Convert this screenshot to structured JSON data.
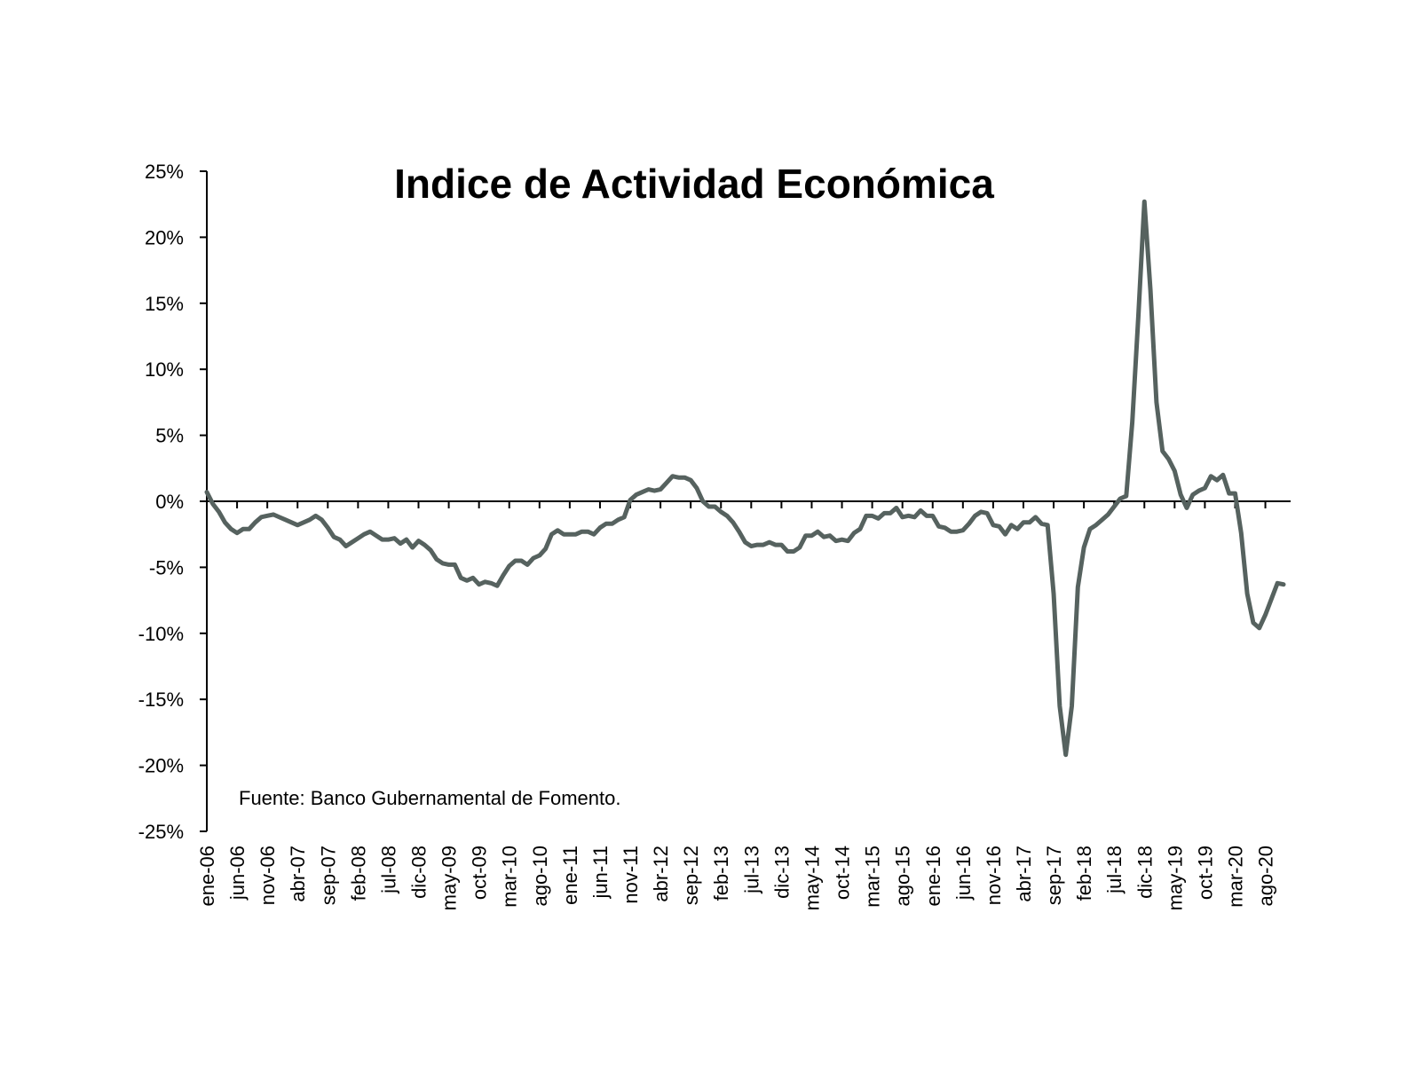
{
  "chart_data": {
    "type": "line",
    "title": "Indice de Actividad Económica",
    "note": "Fuente: Banco Gubernamental de Fomento.",
    "xlabel": "",
    "ylabel": "",
    "ylim": [
      -25,
      25
    ],
    "y_ticks": [
      25,
      20,
      15,
      10,
      5,
      0,
      -5,
      -10,
      -15,
      -20,
      -25
    ],
    "y_tick_labels": [
      "25%",
      "20%",
      "15%",
      "10%",
      "5%",
      "0%",
      "-5%",
      "-10%",
      "-15%",
      "-20%",
      "-25%"
    ],
    "x_tick_labels": [
      "ene-06",
      "jun-06",
      "nov-06",
      "abr-07",
      "sep-07",
      "feb-08",
      "jul-08",
      "dic-08",
      "may-09",
      "oct-09",
      "mar-10",
      "ago-10",
      "ene-11",
      "jun-11",
      "nov-11",
      "abr-12",
      "sep-12",
      "feb-13",
      "jul-13",
      "dic-13",
      "may-14",
      "oct-14",
      "mar-15",
      "ago-15",
      "ene-16",
      "jun-16",
      "nov-16",
      "abr-17",
      "sep-17",
      "feb-18",
      "jul-18",
      "dic-18",
      "may-19",
      "oct-19",
      "mar-20",
      "ago-20"
    ],
    "x_tick_interval_months": 5,
    "x_start": "ene-06",
    "grid": false,
    "line_color": "#56625f",
    "series": [
      {
        "values": [
          0.7,
          -0.2,
          -0.8,
          -1.6,
          -2.1,
          -2.4,
          -2.1,
          -2.1,
          -1.6,
          -1.2,
          -1.1,
          -1.0,
          -1.2,
          -1.4,
          -1.6,
          -1.8,
          -1.6,
          -1.4,
          -1.1,
          -1.4,
          -2.0,
          -2.7,
          -2.9,
          -3.4,
          -3.1,
          -2.8,
          -2.5,
          -2.3,
          -2.6,
          -2.9,
          -2.9,
          -2.8,
          -3.2,
          -2.9,
          -3.5,
          -3.0,
          -3.3,
          -3.7,
          -4.4,
          -4.7,
          -4.8,
          -4.8,
          -5.8,
          -6.0,
          -5.8,
          -6.3,
          -6.1,
          -6.2,
          -6.4,
          -5.6,
          -4.9,
          -4.5,
          -4.5,
          -4.8,
          -4.3,
          -4.1,
          -3.6,
          -2.5,
          -2.2,
          -2.5,
          -2.5,
          -2.5,
          -2.3,
          -2.3,
          -2.5,
          -2.0,
          -1.7,
          -1.7,
          -1.4,
          -1.2,
          0.1,
          0.5,
          0.7,
          0.9,
          0.8,
          0.9,
          1.4,
          1.9,
          1.8,
          1.8,
          1.6,
          1.0,
          0.0,
          -0.4,
          -0.4,
          -0.8,
          -1.1,
          -1.6,
          -2.3,
          -3.1,
          -3.4,
          -3.3,
          -3.3,
          -3.1,
          -3.3,
          -3.3,
          -3.8,
          -3.8,
          -3.5,
          -2.6,
          -2.6,
          -2.3,
          -2.7,
          -2.6,
          -3.0,
          -2.9,
          -3.0,
          -2.4,
          -2.1,
          -1.1,
          -1.1,
          -1.3,
          -0.9,
          -0.9,
          -0.5,
          -1.2,
          -1.1,
          -1.2,
          -0.7,
          -1.1,
          -1.1,
          -1.9,
          -2.0,
          -2.3,
          -2.3,
          -2.2,
          -1.7,
          -1.1,
          -0.8,
          -0.9,
          -1.8,
          -1.9,
          -2.5,
          -1.8,
          -2.1,
          -1.6,
          -1.6,
          -1.2,
          -1.7,
          -1.8,
          -7.0,
          -15.5,
          -19.2,
          -15.5,
          -6.5,
          -3.5,
          -2.1,
          -1.8,
          -1.4,
          -1.0,
          -0.4,
          0.2,
          0.4,
          6.0,
          14.0,
          22.7,
          16.0,
          7.5,
          3.8,
          3.2,
          2.3,
          0.5,
          -0.5,
          0.5,
          0.8,
          1.0,
          1.9,
          1.6,
          2.0,
          0.6,
          0.6,
          -2.4,
          -7.0,
          -9.2,
          -9.6,
          -8.6,
          -7.4,
          -6.2,
          -6.3
        ]
      }
    ]
  }
}
